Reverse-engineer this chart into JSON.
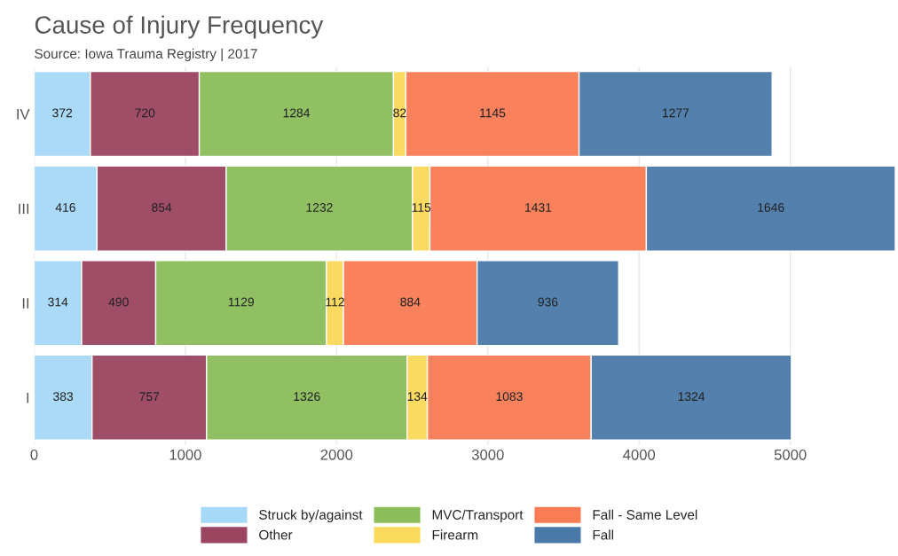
{
  "chart_data": {
    "type": "bar",
    "title": "Cause of Injury Frequency",
    "subtitle": "Source: Iowa Trauma Registry | 2017",
    "orientation": "horizontal",
    "stacked": true,
    "categories": [
      "IV",
      "III",
      "II",
      "I"
    ],
    "series": [
      {
        "name": "Struck by/against",
        "color": "#a6d8f7",
        "values": [
          372,
          416,
          314,
          383
        ]
      },
      {
        "name": "Other",
        "color": "#9b4560",
        "values": [
          720,
          854,
          490,
          757
        ]
      },
      {
        "name": "MVC/Transport",
        "color": "#8bbd5a",
        "values": [
          1284,
          1232,
          1129,
          1326
        ]
      },
      {
        "name": "Firearm",
        "color": "#fbd95a",
        "values": [
          82,
          115,
          112,
          134
        ]
      },
      {
        "name": "Fall - Same Level",
        "color": "#f97c55",
        "values": [
          1145,
          1431,
          884,
          1083
        ]
      },
      {
        "name": "Fall",
        "color": "#4a7aa8",
        "values": [
          1277,
          1646,
          936,
          1324
        ]
      }
    ],
    "xlim": [
      0,
      5700
    ],
    "xticks": [
      0,
      1000,
      2000,
      3000,
      4000,
      5000
    ],
    "grid": "x",
    "legend": "bottom",
    "data_labels": true
  }
}
